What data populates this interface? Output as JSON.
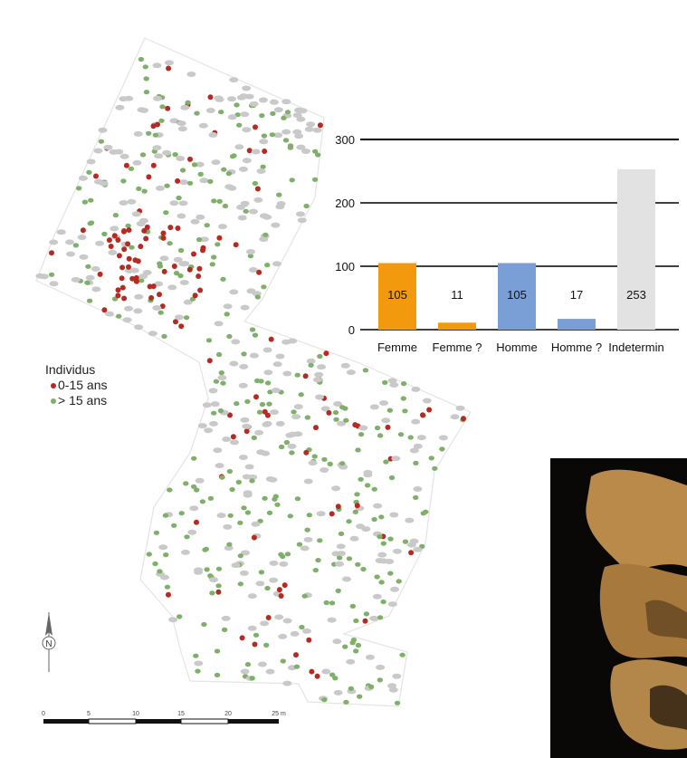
{
  "legend": {
    "title": "Individus",
    "items": [
      {
        "label": "0-15 ans",
        "color": "#b52a22"
      },
      {
        "label": "> 15 ans",
        "color": "#7fb06a"
      }
    ]
  },
  "north_label": "N",
  "scale": {
    "ticks": [
      "0",
      "5",
      "10",
      "15",
      "20",
      "25 m"
    ]
  },
  "chart_data": {
    "type": "bar",
    "categories": [
      "Femme",
      "Femme ?",
      "Homme",
      "Homme ?",
      "Indetermin"
    ],
    "values": [
      105,
      11,
      105,
      17,
      253
    ],
    "value_labels": [
      "105",
      "11",
      "105",
      "17",
      "253"
    ],
    "colors": [
      "#f2990d",
      "#f2990d",
      "#7a9fd6",
      "#7a9fd6",
      "#e2e2e2"
    ],
    "yticks": [
      0,
      100,
      200,
      300
    ],
    "ylim": [
      0,
      300
    ],
    "title": "",
    "xlabel": "",
    "ylabel": ""
  },
  "colors": {
    "grave_gray": "#c9c9c9",
    "child_red": "#b52a22",
    "adult_green": "#7fb06a",
    "outline": "#dddddd",
    "bone": "#b98a4a"
  }
}
